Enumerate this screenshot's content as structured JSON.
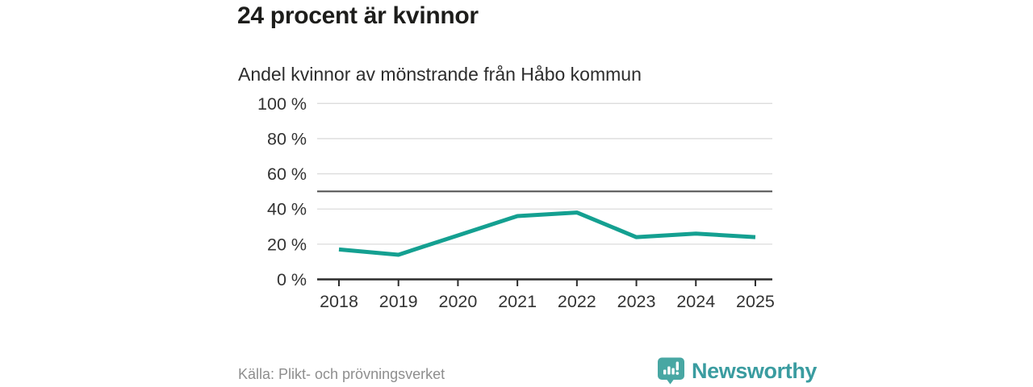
{
  "header": {
    "title": "24 procent är kvinnor"
  },
  "chart_data": {
    "type": "line",
    "title": "Andel kvinnor av mönstrande från Håbo kommun",
    "x": [
      "2018",
      "2019",
      "2020",
      "2021",
      "2022",
      "2023",
      "2024",
      "2025"
    ],
    "series": [
      {
        "name": "andel-kvinnor",
        "values": [
          17,
          14,
          25,
          36,
          38,
          24,
          26,
          24
        ]
      }
    ],
    "unit": "%",
    "ylim": [
      0,
      100
    ],
    "yticks": [
      0,
      20,
      40,
      60,
      80,
      100
    ],
    "ytick_suffix": " %",
    "reference_line": 50,
    "grid": true,
    "legend": "none",
    "colors": {
      "line": "#14a091",
      "grid": "#dcdcdc",
      "reference": "#4d4d4d",
      "axis": "#2b2b2b",
      "tick_label": "#333333"
    }
  },
  "footer": {
    "source": "Källa: Plikt- och prövningsverket",
    "brand": "Newsworthy",
    "brand_color": "#3a9ca0",
    "brand_icon": "speech-bubble-bar-chart-icon",
    "brand_icon_color": "#48a7a3"
  }
}
